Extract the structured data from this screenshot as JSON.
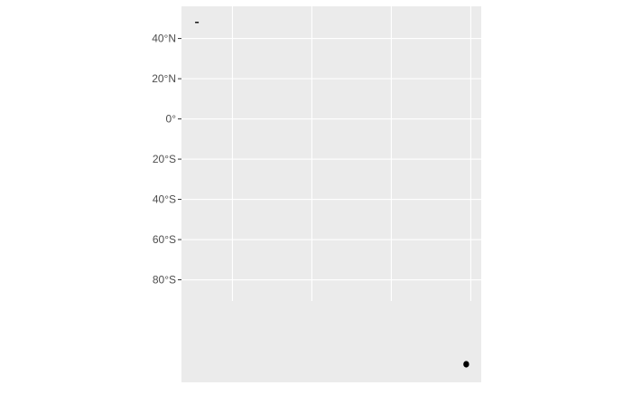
{
  "chart_data": {
    "type": "scatter",
    "title": "",
    "xlabel": "",
    "ylabel": "",
    "y_ticks": [
      {
        "value": 40,
        "label": "40°N"
      },
      {
        "value": 20,
        "label": "20°N"
      },
      {
        "value": 0,
        "label": "0°"
      },
      {
        "value": -20,
        "label": "20°S"
      },
      {
        "value": -40,
        "label": "40°S"
      },
      {
        "value": -60,
        "label": "60°S"
      },
      {
        "value": -80,
        "label": "80°S"
      }
    ],
    "ylim": [
      -131,
      56
    ],
    "xlim": [
      0,
      100
    ],
    "x_gridlines": [
      17,
      43.5,
      70,
      96.5
    ],
    "points": [
      {
        "x": 95,
        "y": -122,
        "kind": "dot"
      },
      {
        "x": 5,
        "y": 48,
        "kind": "dash"
      }
    ],
    "grid": true,
    "legend": "none"
  },
  "colors": {
    "panel": "#ebebeb",
    "grid": "#ffffff",
    "tick_text": "#4d4d4d",
    "tick_mark": "#333333",
    "point": "#000000"
  }
}
